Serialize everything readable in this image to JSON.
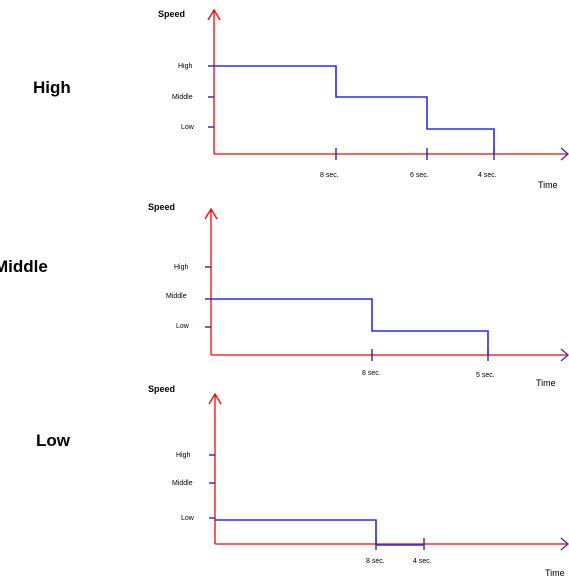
{
  "labels": {
    "speed": "Speed",
    "time": "Time"
  },
  "colors": {
    "axis": "#ff0000",
    "line": "#2a2aff",
    "ticks": "#1a1a99"
  },
  "panels": [
    {
      "mode": "High",
      "speed_levels": [
        "High",
        "Middle",
        "Low"
      ],
      "time_labels": [
        "8 sec.",
        "6 sec.",
        "4 sec."
      ],
      "profile": [
        "High",
        "Middle",
        "Low"
      ]
    },
    {
      "mode": "Middle",
      "speed_levels": [
        "High",
        "Middle",
        "Low"
      ],
      "time_labels": [
        "8 sec.",
        "5 sec."
      ],
      "profile": [
        "Middle",
        "Low"
      ]
    },
    {
      "mode": "Low",
      "speed_levels": [
        "High",
        "Middle",
        "Low"
      ],
      "time_labels": [
        "8 sec.",
        "4 sec."
      ],
      "profile": [
        "Low",
        "Zero"
      ]
    }
  ]
}
